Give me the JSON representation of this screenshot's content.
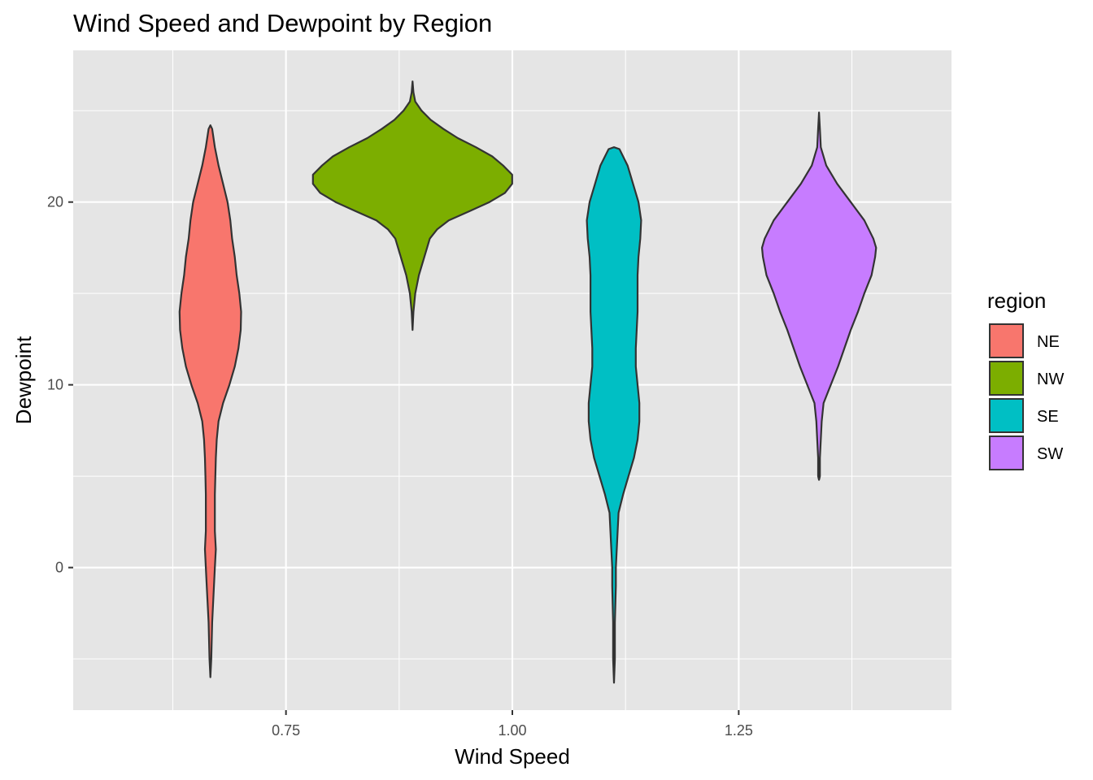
{
  "chart_data": {
    "type": "violin",
    "title": "Wind Speed and Dewpoint by Region",
    "xlabel": "Wind Speed",
    "ylabel": "Dewpoint",
    "xlim": [
      0.515,
      1.485
    ],
    "ylim": [
      -7.8,
      28.3
    ],
    "x_ticks": [
      0.75,
      1.0,
      1.25
    ],
    "x_tick_labels": [
      "0.75",
      "1.00",
      "1.25"
    ],
    "y_ticks": [
      0,
      10,
      20
    ],
    "y_tick_labels": [
      "0",
      "10",
      "20"
    ],
    "x_minor": [
      0.625,
      0.875,
      1.125,
      1.375
    ],
    "y_minor": [
      -5,
      5,
      15,
      25
    ],
    "grid": true,
    "legend_title": "region",
    "legend_position": "right",
    "series": [
      {
        "name": "NE",
        "color": "#F8766D",
        "center": 0.6665,
        "profile": [
          [
            -6.0,
            0.0
          ],
          [
            -5.0,
            0.001
          ],
          [
            -3.0,
            0.002
          ],
          [
            -1.0,
            0.004
          ],
          [
            0.0,
            0.005
          ],
          [
            1.0,
            0.006
          ],
          [
            2.0,
            0.005
          ],
          [
            3.0,
            0.005
          ],
          [
            4.0,
            0.005
          ],
          [
            5.0,
            0.0055
          ],
          [
            6.0,
            0.006
          ],
          [
            7.0,
            0.007
          ],
          [
            8.0,
            0.009
          ],
          [
            9.0,
            0.014
          ],
          [
            10.0,
            0.021
          ],
          [
            11.0,
            0.027
          ],
          [
            12.0,
            0.031
          ],
          [
            13.0,
            0.0335
          ],
          [
            14.0,
            0.034
          ],
          [
            15.0,
            0.032
          ],
          [
            16.0,
            0.029
          ],
          [
            17.0,
            0.027
          ],
          [
            18.0,
            0.024
          ],
          [
            19.0,
            0.022
          ],
          [
            20.0,
            0.019
          ],
          [
            21.0,
            0.014
          ],
          [
            22.0,
            0.009
          ],
          [
            23.0,
            0.005
          ],
          [
            24.0,
            0.002
          ],
          [
            24.2,
            0.0
          ]
        ]
      },
      {
        "name": "NW",
        "color": "#7CAE00",
        "center": 0.8898,
        "profile": [
          [
            13.0,
            0.0
          ],
          [
            14.0,
            0.001
          ],
          [
            15.0,
            0.003
          ],
          [
            16.0,
            0.007
          ],
          [
            17.0,
            0.013
          ],
          [
            18.0,
            0.019
          ],
          [
            18.5,
            0.027
          ],
          [
            19.0,
            0.04
          ],
          [
            19.5,
            0.063
          ],
          [
            20.0,
            0.085
          ],
          [
            20.5,
            0.102
          ],
          [
            21.0,
            0.11
          ],
          [
            21.5,
            0.11
          ],
          [
            22.0,
            0.1
          ],
          [
            22.5,
            0.088
          ],
          [
            23.0,
            0.07
          ],
          [
            23.5,
            0.05
          ],
          [
            24.0,
            0.034
          ],
          [
            24.5,
            0.02
          ],
          [
            25.0,
            0.01
          ],
          [
            25.5,
            0.003
          ],
          [
            26.0,
            0.001
          ],
          [
            26.6,
            0.0
          ]
        ]
      },
      {
        "name": "SE",
        "color": "#00BFC4",
        "center": 1.1123,
        "profile": [
          [
            -6.3,
            0.0
          ],
          [
            -5.0,
            0.001
          ],
          [
            -3.0,
            0.001
          ],
          [
            -1.0,
            0.002
          ],
          [
            0.0,
            0.002
          ],
          [
            1.0,
            0.003
          ],
          [
            2.0,
            0.004
          ],
          [
            3.0,
            0.005
          ],
          [
            4.0,
            0.01
          ],
          [
            5.0,
            0.016
          ],
          [
            6.0,
            0.022
          ],
          [
            7.0,
            0.026
          ],
          [
            8.0,
            0.028
          ],
          [
            9.0,
            0.028
          ],
          [
            10.0,
            0.026
          ],
          [
            11.0,
            0.024
          ],
          [
            12.0,
            0.024
          ],
          [
            13.0,
            0.025
          ],
          [
            14.0,
            0.026
          ],
          [
            15.0,
            0.026
          ],
          [
            16.0,
            0.026
          ],
          [
            17.0,
            0.027
          ],
          [
            18.0,
            0.029
          ],
          [
            19.0,
            0.03
          ],
          [
            20.0,
            0.027
          ],
          [
            21.0,
            0.021
          ],
          [
            22.0,
            0.015
          ],
          [
            22.9,
            0.006
          ],
          [
            23.0,
            0.0
          ]
        ]
      },
      {
        "name": "SW",
        "color": "#C77CFF",
        "center": 1.3387,
        "profile": [
          [
            4.8,
            0.0
          ],
          [
            5.0,
            0.001
          ],
          [
            6.0,
            0.001
          ],
          [
            7.0,
            0.002
          ],
          [
            8.0,
            0.003
          ],
          [
            9.0,
            0.005
          ],
          [
            10.0,
            0.013
          ],
          [
            11.0,
            0.021
          ],
          [
            12.0,
            0.028
          ],
          [
            13.0,
            0.035
          ],
          [
            14.0,
            0.043
          ],
          [
            15.0,
            0.05
          ],
          [
            16.0,
            0.058
          ],
          [
            17.0,
            0.062
          ],
          [
            17.5,
            0.063
          ],
          [
            18.0,
            0.06
          ],
          [
            19.0,
            0.05
          ],
          [
            20.0,
            0.035
          ],
          [
            21.0,
            0.02
          ],
          [
            22.0,
            0.008
          ],
          [
            23.0,
            0.002
          ],
          [
            24.0,
            0.001
          ],
          [
            24.9,
            0.0
          ]
        ]
      }
    ]
  }
}
